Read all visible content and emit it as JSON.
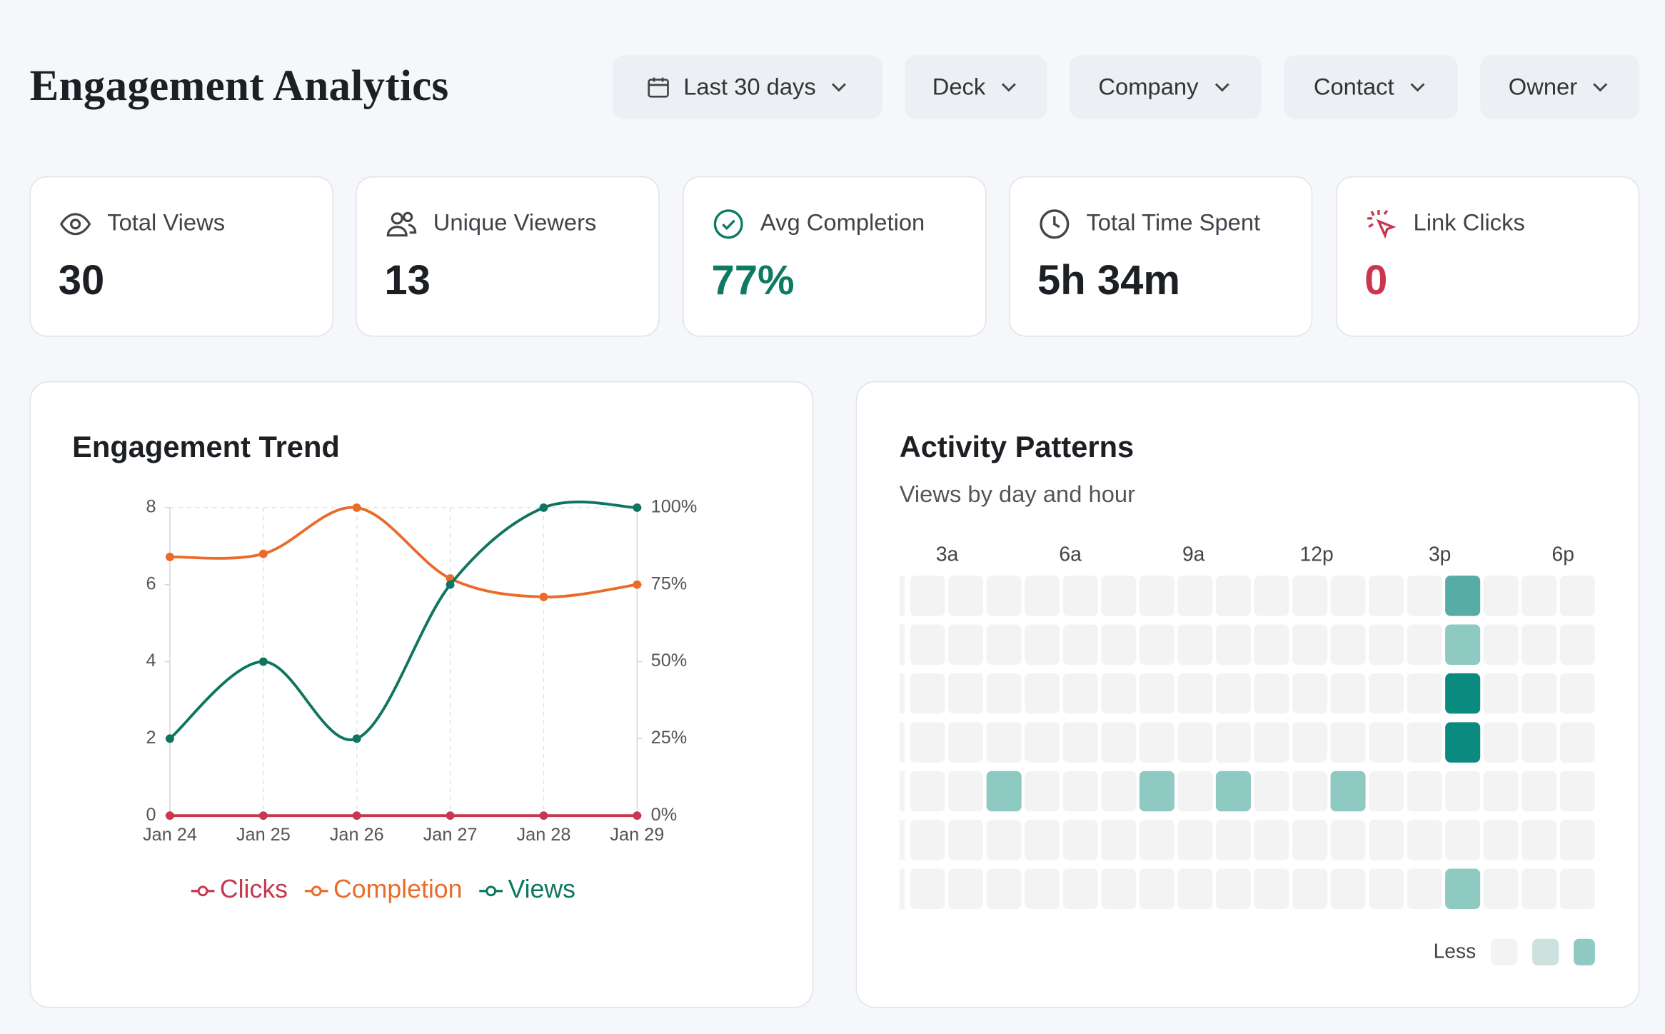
{
  "header": {
    "title": "Engagement Analytics"
  },
  "filters": [
    "Last 30 days",
    "Deck",
    "Company",
    "Contact",
    "Owner"
  ],
  "stats": [
    {
      "label": "Total Views",
      "value": 30
    },
    {
      "label": "Unique Viewers",
      "value": 13
    },
    {
      "label": "Avg Completion",
      "value": "77%",
      "color": "#0e7a63"
    },
    {
      "label": "Total Time Spent",
      "value": "5h 34m"
    },
    {
      "label": "Link Clicks",
      "value": 0,
      "color": "#c8374f"
    }
  ],
  "chart_data": [
    {
      "type": "line",
      "title": "Engagement Trend",
      "categories": [
        "Jan 24",
        "Jan 25",
        "Jan 26",
        "Jan 27",
        "Jan 28",
        "Jan 29"
      ],
      "series": [
        {
          "name": "Clicks",
          "color": "#c8374f",
          "values": [
            0,
            0,
            0,
            0,
            0,
            0
          ]
        },
        {
          "name": "Completion",
          "color": "#eb6b2a",
          "values": [
            84,
            85,
            100,
            77,
            71,
            75
          ],
          "axis": "y2"
        },
        {
          "name": "Views",
          "color": "#0e7560",
          "values": [
            2,
            4,
            2,
            6,
            8,
            8
          ]
        }
      ],
      "ylim": [
        0,
        8
      ],
      "yticks": [
        0,
        2,
        4,
        6,
        8
      ],
      "y2lim": [
        0,
        100
      ],
      "y2ticks": [
        {
          "value": 0,
          "label": "0%"
        },
        {
          "value": 25,
          "label": "25%"
        },
        {
          "value": 50,
          "label": "50%"
        },
        {
          "value": 75,
          "label": "75%"
        },
        {
          "value": 100,
          "label": "100%"
        }
      ],
      "grid": "x",
      "legend": "bottom"
    },
    {
      "type": "heatmap",
      "title": "Activity Patterns",
      "subtitle": "Views by day and hour",
      "x_labels": [
        "3a",
        "6a",
        "9a",
        "12p",
        "3p",
        "6p"
      ],
      "values": [
        [
          0,
          0,
          0,
          0,
          0,
          0,
          0,
          0,
          0,
          0,
          0,
          0,
          0,
          0,
          3,
          0,
          0,
          0
        ],
        [
          0,
          0,
          0,
          0,
          0,
          0,
          0,
          0,
          0,
          0,
          0,
          0,
          0,
          0,
          2,
          0,
          0,
          0
        ],
        [
          0,
          0,
          0,
          0,
          0,
          0,
          0,
          0,
          0,
          0,
          0,
          0,
          0,
          0,
          4,
          0,
          0,
          0
        ],
        [
          0,
          0,
          0,
          0,
          0,
          0,
          0,
          0,
          0,
          0,
          0,
          0,
          0,
          0,
          4,
          0,
          0,
          0
        ],
        [
          0,
          0,
          2,
          0,
          0,
          0,
          2,
          0,
          2,
          0,
          0,
          2,
          0,
          0,
          0,
          0,
          0,
          0
        ],
        [
          0,
          0,
          0,
          0,
          0,
          0,
          0,
          0,
          0,
          0,
          0,
          0,
          0,
          0,
          0,
          0,
          0,
          0
        ],
        [
          0,
          0,
          0,
          0,
          0,
          0,
          0,
          0,
          0,
          0,
          0,
          0,
          0,
          0,
          2,
          0,
          0,
          0
        ]
      ],
      "colorscale": [
        "#f3f3f3",
        "#cde2de",
        "#8ecac2",
        "#57ada5",
        "#0b8a80"
      ],
      "legend_label": "Less"
    }
  ]
}
